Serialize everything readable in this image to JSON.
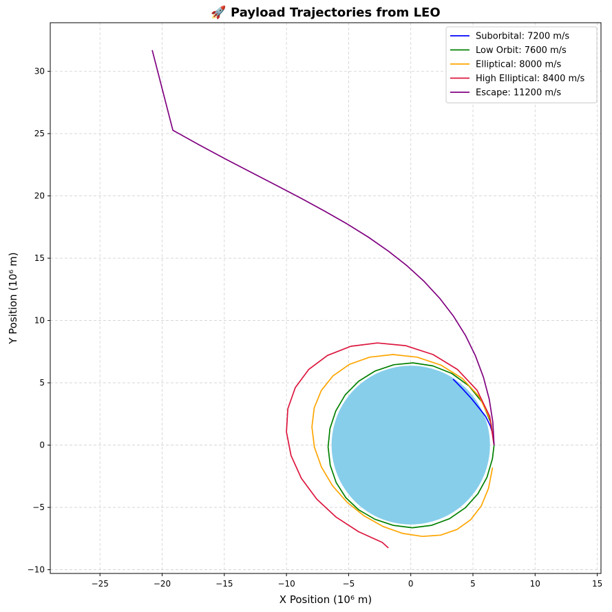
{
  "chart_data": {
    "type": "line",
    "title": "🚀 Payload Trajectories from LEO",
    "xlabel": "X Position (10⁶ m)",
    "ylabel": "Y Position (10⁶ m)",
    "xlim": [
      -29.0,
      15.3
    ],
    "ylim": [
      -10.3,
      33.9
    ],
    "xticks": [
      -25,
      -20,
      -15,
      -10,
      -5,
      0,
      5,
      10,
      15
    ],
    "yticks": [
      -10,
      -5,
      0,
      5,
      10,
      15,
      20,
      25,
      30
    ],
    "xtick_labels": [
      "−25",
      "−20",
      "−15",
      "−10",
      "−5",
      "0",
      "5",
      "10",
      "15"
    ],
    "ytick_labels": [
      "−10",
      "−5",
      "0",
      "5",
      "10",
      "15",
      "20",
      "25",
      "30"
    ],
    "grid": true,
    "legend_position": "top-right",
    "planet": {
      "center": [
        0,
        0
      ],
      "radius": 6.37,
      "color": "#87CEEB"
    },
    "series": [
      {
        "name": "Suborbital: 7200 m/s",
        "color": "#0000ff",
        "x": [
          6.7,
          6.62,
          6.39,
          6.02,
          5.5,
          4.87,
          4.13,
          3.4
        ],
        "y": [
          0,
          0.8,
          1.57,
          2.3,
          2.97,
          3.75,
          4.55,
          5.3
        ]
      },
      {
        "name": "Low Orbit: 7600 m/s",
        "color": "#008000",
        "x": [
          6.7,
          6.45,
          5.77,
          4.67,
          3.3,
          1.78,
          0.19,
          -1.37,
          -2.87,
          -4.2,
          -5.27,
          -6.03,
          -6.5,
          -6.65,
          -6.48,
          -6.0,
          -5.22,
          -4.18,
          -2.88,
          -1.42,
          0.13,
          1.68,
          3.12,
          4.39,
          5.4,
          6.13,
          6.57,
          6.7
        ],
        "y": [
          0,
          1.77,
          3.41,
          4.76,
          5.75,
          6.36,
          6.6,
          6.45,
          5.95,
          5.12,
          4.04,
          2.75,
          1.33,
          -0.15,
          -1.62,
          -3.0,
          -4.22,
          -5.2,
          -5.95,
          -6.44,
          -6.63,
          -6.44,
          -5.9,
          -5.03,
          -3.91,
          -2.58,
          -1.1,
          0
        ]
      },
      {
        "name": "Elliptical: 8000 m/s",
        "color": "#ffa500",
        "x": [
          6.7,
          6.4,
          5.53,
          4.16,
          2.43,
          0.51,
          -1.44,
          -3.3,
          -4.94,
          -6.25,
          -7.2,
          -7.77,
          -7.95,
          -7.75,
          -7.19,
          -6.3,
          -5.13,
          -3.75,
          -2.23,
          -0.64,
          0.93,
          2.41,
          3.72,
          4.83,
          5.67,
          6.25,
          6.58
        ],
        "y": [
          0,
          2.03,
          3.86,
          5.34,
          6.42,
          7.06,
          7.27,
          7.06,
          6.48,
          5.56,
          4.38,
          2.98,
          1.45,
          -0.16,
          -1.76,
          -3.25,
          -4.58,
          -5.68,
          -6.53,
          -7.09,
          -7.33,
          -7.22,
          -6.77,
          -5.98,
          -4.88,
          -3.47,
          -1.8
        ]
      },
      {
        "name": "High Elliptical: 8400 m/s",
        "color": "#dc143c",
        "x": [
          6.7,
          6.35,
          5.34,
          3.77,
          1.79,
          -0.42,
          -2.68,
          -4.82,
          -6.7,
          -8.21,
          -9.29,
          -9.89,
          -10.0,
          -9.63,
          -8.8,
          -7.56,
          -6.0,
          -4.2,
          -2.3,
          -1.8
        ],
        "y": [
          0,
          2.3,
          4.39,
          6.06,
          7.27,
          7.98,
          8.2,
          7.93,
          7.2,
          6.07,
          4.61,
          2.91,
          1.06,
          -0.84,
          -2.67,
          -4.34,
          -5.78,
          -6.95,
          -7.81,
          -8.25
        ]
      },
      {
        "name": "Escape: 11200 m/s",
        "color": "#800080",
        "x": [
          6.7,
          6.6,
          6.31,
          5.84,
          5.2,
          4.4,
          3.44,
          2.33,
          1.08,
          -0.3,
          -1.8,
          -3.41,
          -5.12,
          -6.92,
          -8.8,
          -10.76,
          -12.78,
          -14.86,
          -16.98,
          -19.14,
          -20.8
        ],
        "y": [
          0,
          1.85,
          3.68,
          5.46,
          7.17,
          8.8,
          10.34,
          11.78,
          13.13,
          14.39,
          15.57,
          16.69,
          17.75,
          18.78,
          19.8,
          20.82,
          21.86,
          22.94,
          24.07,
          25.27,
          31.7
        ]
      }
    ]
  }
}
